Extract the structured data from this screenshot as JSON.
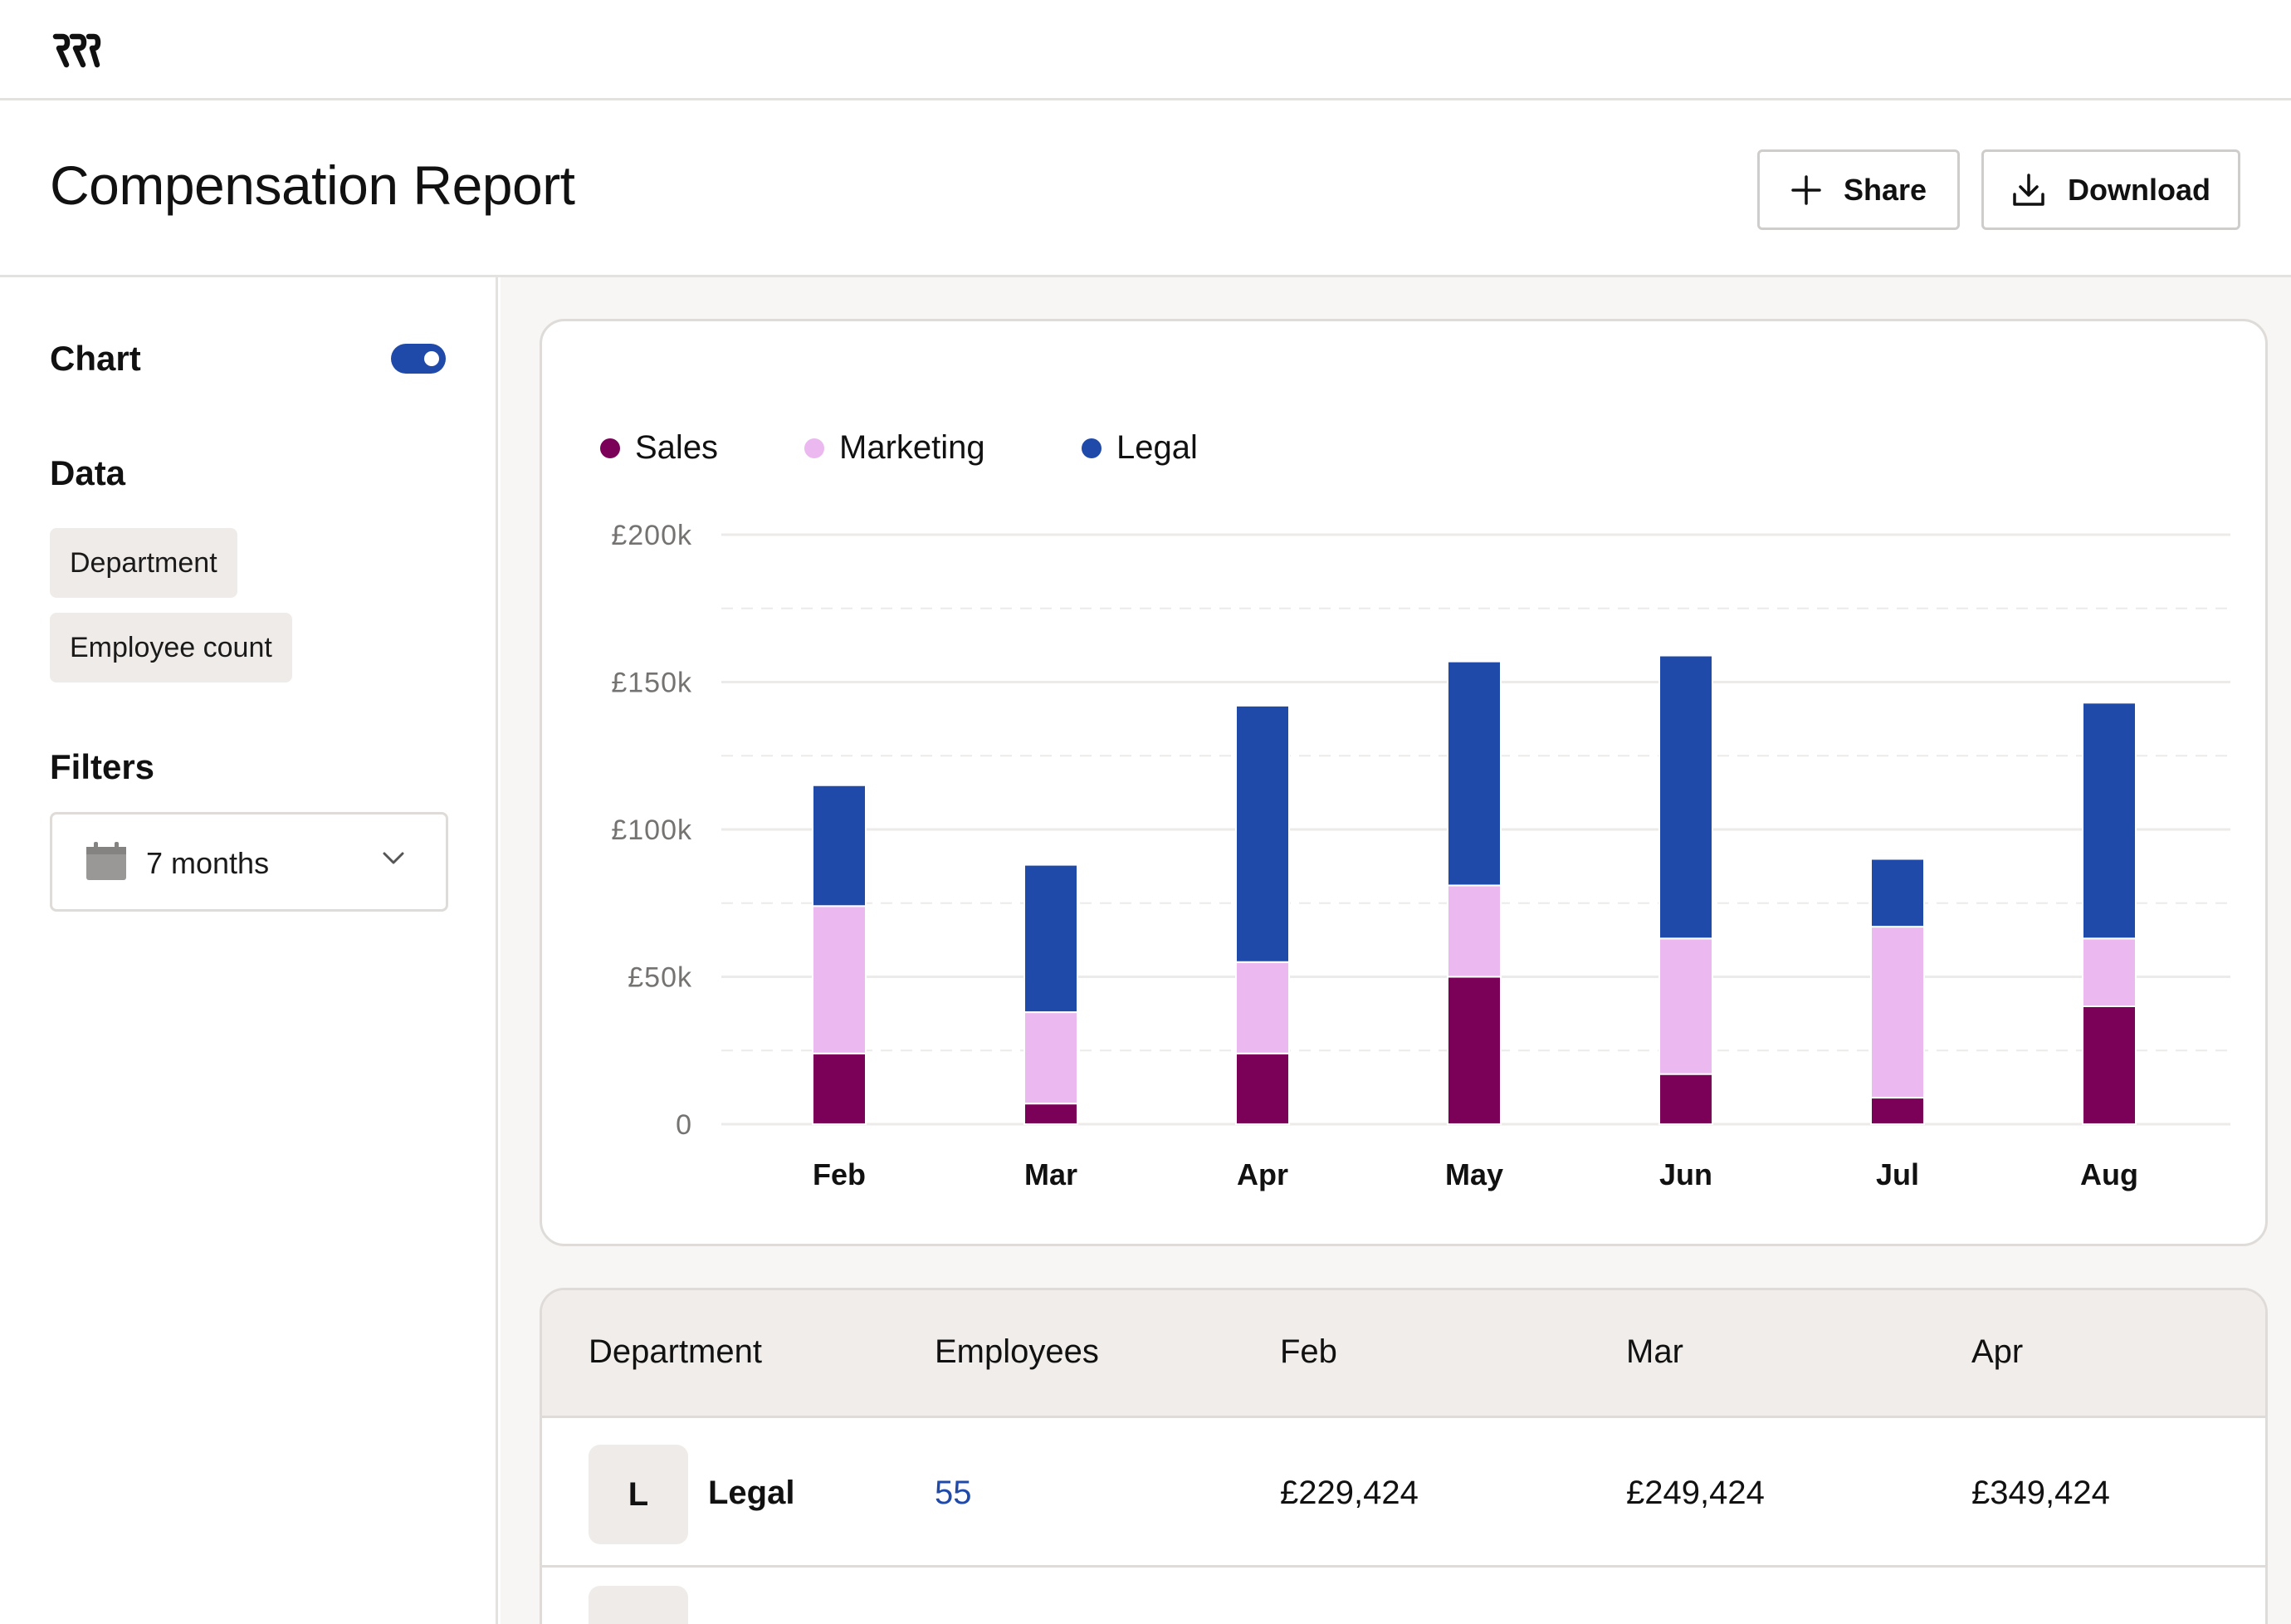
{
  "header": {
    "title": "Compensation Report",
    "share_label": "Share",
    "download_label": "Download"
  },
  "sidebar": {
    "chart_label": "Chart",
    "chart_toggle_on": true,
    "data_label": "Data",
    "data_chips": [
      "Department",
      "Employee count"
    ],
    "filters_label": "Filters",
    "period_value": "7 months"
  },
  "colors": {
    "sales": "#7a0058",
    "marketing": "#ebb8f0",
    "legal": "#1f4aa9",
    "accent": "#1f4aa9"
  },
  "legend": [
    "Sales",
    "Marketing",
    "Legal"
  ],
  "chart_data": {
    "type": "bar",
    "stacked": true,
    "categories": [
      "Feb",
      "Mar",
      "Apr",
      "May",
      "Jun",
      "Jul",
      "Aug"
    ],
    "series": [
      {
        "name": "Sales",
        "values": [
          24000,
          7000,
          24000,
          50000,
          17000,
          9000,
          40000
        ]
      },
      {
        "name": "Marketing",
        "values": [
          50000,
          31000,
          31000,
          31000,
          46000,
          58000,
          23000
        ]
      },
      {
        "name": "Legal",
        "values": [
          41000,
          50000,
          87000,
          76000,
          96000,
          23000,
          80000
        ]
      }
    ],
    "yticks": [
      {
        "value": 0,
        "label": "0"
      },
      {
        "value": 50000,
        "label": "£50k"
      },
      {
        "value": 100000,
        "label": "£100k"
      },
      {
        "value": 150000,
        "label": "£150k"
      },
      {
        "value": 200000,
        "label": "£200k"
      }
    ],
    "ylim": [
      0,
      200000
    ],
    "grid": true
  },
  "table": {
    "columns": [
      "Department",
      "Employees",
      "Feb",
      "Mar",
      "Apr"
    ],
    "rows": [
      {
        "initial": "L",
        "department": "Legal",
        "employees": "55",
        "feb": "£229,424",
        "mar": "£249,424",
        "apr": "£349,424"
      }
    ]
  }
}
